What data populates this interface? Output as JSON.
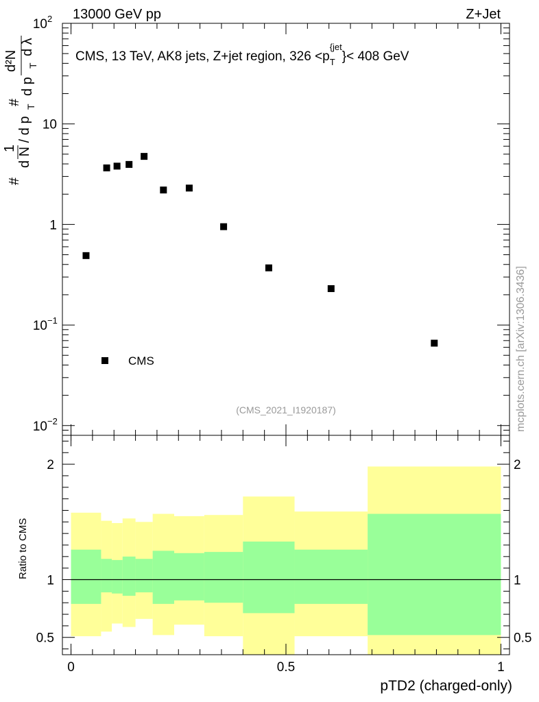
{
  "header": {
    "left": "13000 GeV pp",
    "right": "Z+Jet",
    "side_label": "mcplots.cern.ch [arXiv:1306.3436]",
    "analysis_id": "(CMS_2021_I1920187)"
  },
  "chart_data": [
    {
      "type": "scatter",
      "title_parts": {
        "a": "CMS, 13 TeV, AK8 jets, Z+jet region, 326 <p",
        "sub": "T",
        "sup": "{jet",
        "b": "}< 408 GeV"
      },
      "yscale": "log",
      "ylim": [
        0.008,
        100
      ],
      "xlim": [
        -0.02,
        1.02
      ],
      "ylabel": "1/(dN/dpT) · d²N/(dpT dλ)",
      "ytick_labels": {
        "1e-2": "10",
        "1e-1": "10",
        "1": "1",
        "10": "10",
        "1e2": "10"
      },
      "ytick_exponents": {
        "1e-2": "−2",
        "1e-1": "−1",
        "1e2": "2"
      },
      "legend": {
        "label": "CMS",
        "position": "lower-left"
      },
      "series": [
        {
          "name": "CMS",
          "marker": "square",
          "x": [
            0.035,
            0.083,
            0.107,
            0.135,
            0.17,
            0.215,
            0.275,
            0.355,
            0.46,
            0.605,
            0.845
          ],
          "y": [
            0.49,
            3.65,
            3.8,
            3.95,
            4.75,
            2.2,
            2.3,
            0.95,
            0.37,
            0.23,
            0.066
          ]
        }
      ]
    },
    {
      "type": "area",
      "ylabel": "Ratio to CMS",
      "xlabel": "pTD2 (charged-only)",
      "ylim": [
        0.35,
        2.25
      ],
      "xlim": [
        -0.02,
        1.02
      ],
      "yticks": [
        0.5,
        1,
        2
      ],
      "ytick_labels": [
        "0.5",
        "1",
        "2"
      ],
      "xticks": [
        0,
        0.5,
        1
      ],
      "xtick_labels": [
        "0",
        "0.5",
        "1"
      ],
      "reference_line": 1.0,
      "bin_edges": [
        0.0,
        0.07,
        0.095,
        0.12,
        0.15,
        0.19,
        0.24,
        0.31,
        0.4,
        0.52,
        0.69,
        1.0
      ],
      "bands": [
        {
          "name": "total uncertainty",
          "color": "#ffff99",
          "low": [
            0.51,
            0.55,
            0.62,
            0.59,
            0.66,
            0.52,
            0.61,
            0.51,
            0.35,
            0.51,
            0.35
          ],
          "high": [
            1.58,
            1.51,
            1.49,
            1.53,
            1.5,
            1.57,
            1.55,
            1.56,
            1.72,
            1.59,
            1.98
          ]
        },
        {
          "name": "statistical uncertainty",
          "color": "#99ff99",
          "low": [
            0.79,
            0.89,
            0.88,
            0.86,
            0.89,
            0.79,
            0.82,
            0.8,
            0.71,
            0.79,
            0.52
          ],
          "high": [
            1.26,
            1.18,
            1.17,
            1.2,
            1.18,
            1.25,
            1.23,
            1.24,
            1.33,
            1.26,
            1.57
          ]
        }
      ]
    }
  ]
}
